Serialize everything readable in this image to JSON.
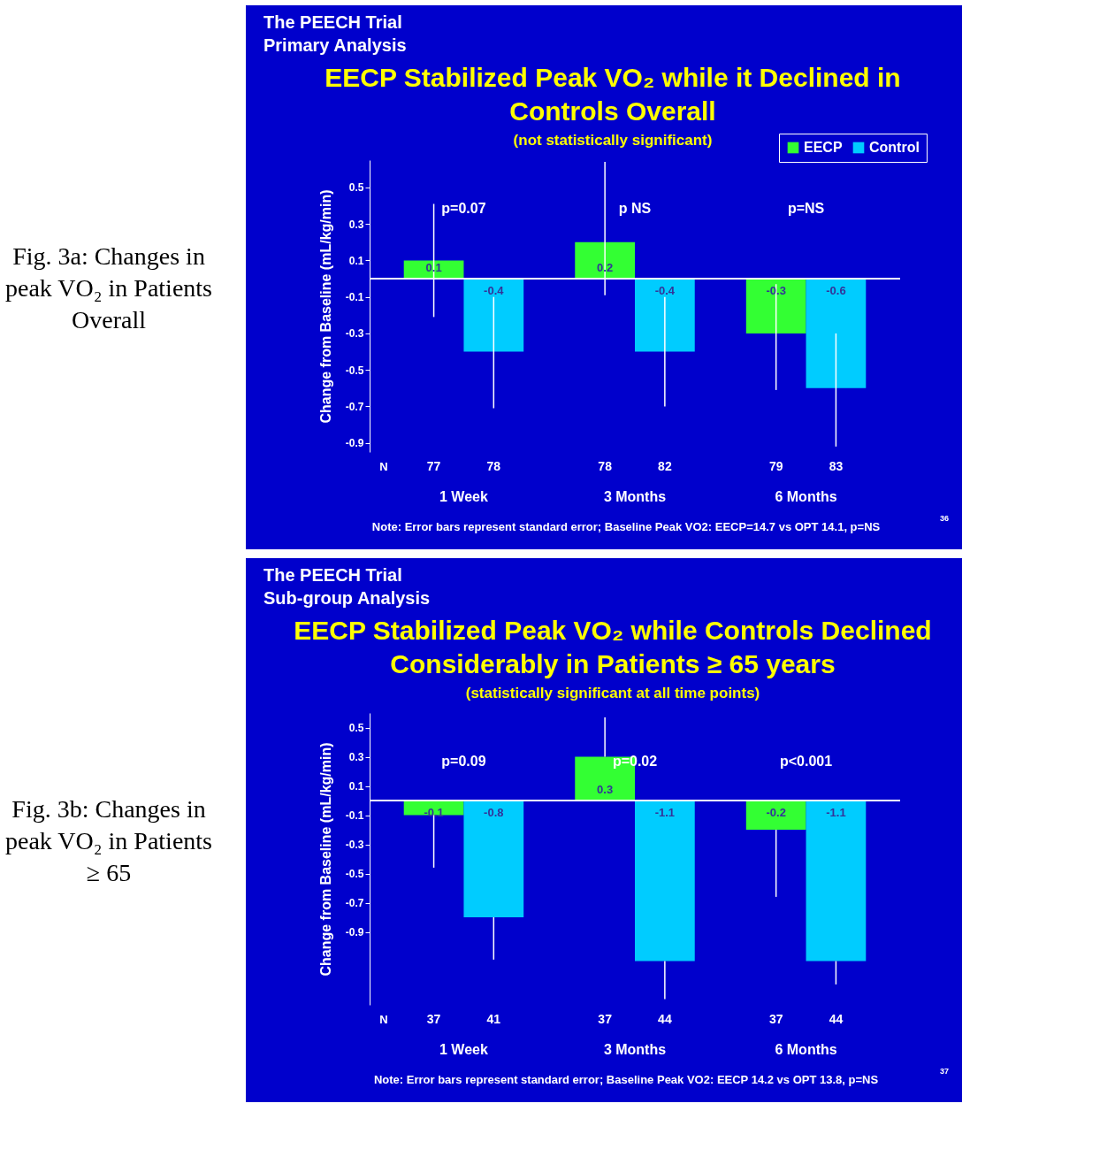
{
  "chart_data": [
    {
      "type": "bar",
      "title": "EECP Stabilized Peak VO₂ while it Declined in Controls Overall",
      "subtitle": "(not statistically significant)",
      "ylabel": "Change from Baseline (mL/kg/min)",
      "categories": [
        "1 Week",
        "3 Months",
        "6 Months"
      ],
      "series": [
        {
          "name": "EECP",
          "color": "#33ff33",
          "values": [
            0.1,
            0.2,
            -0.3
          ],
          "errors": [
            [
              -0.21,
              0.41
            ],
            [
              -0.09,
              0.64
            ],
            [
              -0.61,
              -0.03
            ]
          ]
        },
        {
          "name": "Control",
          "color": "#00ccff",
          "values": [
            -0.4,
            -0.4,
            -0.6
          ],
          "errors": [
            [
              -0.71,
              -0.1
            ],
            [
              -0.7,
              -0.1
            ],
            [
              -0.92,
              -0.3
            ]
          ]
        }
      ],
      "ylim": [
        -0.95,
        0.65
      ],
      "yticks": [
        0.5,
        0.3,
        0.1,
        -0.1,
        -0.3,
        -0.5,
        -0.7,
        -0.9
      ],
      "grid": false,
      "legend": "top right",
      "data_labels": true,
      "annotations": [
        "The PEECH Trial",
        "Primary Analysis",
        "N",
        "Note: Error bars represent standard error; Baseline Peak VO2: EECP=14.7 vs OPT  14.1, p=NS",
        "36",
        "Fig. 3a: Changes in peak VO₂ in Patients Overall",
        "77",
        "78",
        "78",
        "82",
        "79",
        "83",
        "p=0.07",
        "p  NS",
        "p=NS"
      ]
    },
    {
      "type": "bar",
      "title": "EECP Stabilized Peak VO₂ while Controls Declined Considerably in Patients ≥ 65 years",
      "subtitle": "(statistically significant at all time points)",
      "ylabel": "Change from Baseline (mL/kg/min)",
      "categories": [
        "1 Week",
        "3 Months",
        "6 Months"
      ],
      "series": [
        {
          "name": "EECP",
          "color": "#33ff33",
          "values": [
            -0.1,
            0.3,
            -0.2
          ],
          "errors": [
            [
              -0.46,
              -0.1
            ],
            [
              0.3,
              0.57
            ],
            [
              -0.66,
              -0.2
            ]
          ]
        },
        {
          "name": "Control",
          "color": "#00ccff",
          "values": [
            -0.8,
            -1.1,
            -1.1
          ],
          "errors": [
            [
              -1.09,
              -0.8
            ],
            [
              -1.36,
              -1.1
            ],
            [
              -1.26,
              -1.1
            ]
          ]
        }
      ],
      "ylim": [
        -1.4,
        0.6
      ],
      "yticks": [
        0.5,
        0.3,
        0.1,
        -0.1,
        -0.3,
        -0.5,
        -0.7,
        -0.9
      ],
      "grid": false,
      "legend": "top right",
      "data_labels": true,
      "annotations": [
        "The PEECH Trial",
        "Sub-group Analysis",
        "N",
        "Note: Error bars represent standard error; Baseline Peak VO2: EECP  14.2 vs OPT  13.8, p=NS",
        "37",
        "Fig. 3b: Changes in peak VO₂ in Patients ≥ 65",
        "37",
        "41",
        "37",
        "44",
        "37",
        "44",
        "p=0.09",
        "p=0.02",
        "p<0.001"
      ]
    }
  ]
}
